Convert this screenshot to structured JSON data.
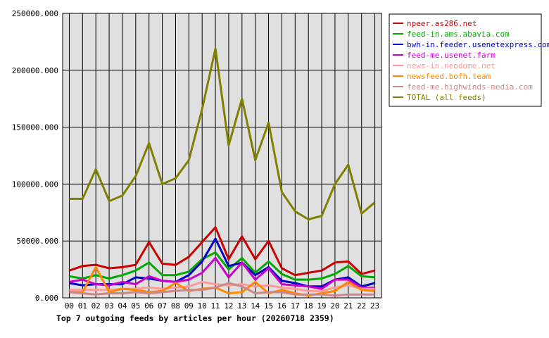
{
  "chart_data": {
    "type": "line",
    "title": "Top 7 outgoing feeds by articles per hour (20260718 2359)",
    "x": [
      "00",
      "01",
      "02",
      "03",
      "04",
      "05",
      "06",
      "07",
      "08",
      "09",
      "10",
      "11",
      "12",
      "13",
      "14",
      "15",
      "16",
      "17",
      "18",
      "19",
      "20",
      "21",
      "22",
      "23"
    ],
    "ylim": [
      0,
      250000
    ],
    "yticks": [
      "0.000",
      "50000.000",
      "100000.000",
      "150000.000",
      "200000.000",
      "250000.000"
    ],
    "ytick_values": [
      0,
      50000,
      100000,
      150000,
      200000,
      250000
    ],
    "grid": true,
    "legend_position": "top-right",
    "series": [
      {
        "name": "npeer.as286.net",
        "color": "#cc0000",
        "values": [
          24000,
          28000,
          29000,
          26000,
          27000,
          29000,
          49000,
          30000,
          29000,
          36000,
          49000,
          62000,
          34000,
          54000,
          34000,
          50000,
          26000,
          20000,
          22000,
          24000,
          31000,
          32000,
          21000,
          24000
        ]
      },
      {
        "name": "feed-in.ams.abavia.com",
        "color": "#00aa00",
        "values": [
          19000,
          17000,
          20000,
          17000,
          20000,
          24000,
          31000,
          20000,
          20000,
          23000,
          34000,
          40000,
          25000,
          35000,
          22000,
          32000,
          21000,
          16000,
          16000,
          17000,
          21000,
          28000,
          19000,
          18000
        ]
      },
      {
        "name": "bwh-in.feeder.usenetexpress.com",
        "color": "#0000cc",
        "values": [
          13000,
          11000,
          12000,
          12000,
          12000,
          18000,
          17000,
          15000,
          14000,
          20000,
          32000,
          52000,
          28000,
          31000,
          20000,
          27000,
          15000,
          13000,
          10000,
          10000,
          16000,
          18000,
          10000,
          13000
        ]
      },
      {
        "name": "feed-me.usenet.farm",
        "color": "#cc00cc",
        "values": [
          14000,
          16000,
          12000,
          11000,
          14000,
          12000,
          19000,
          15000,
          14000,
          16000,
          22000,
          35000,
          18000,
          31000,
          16000,
          26000,
          12000,
          11000,
          10000,
          8000,
          16000,
          16000,
          9000,
          9000
        ]
      },
      {
        "name": "news-in.neodome.net",
        "color": "#ff9999",
        "values": [
          7000,
          7000,
          7000,
          7000,
          8000,
          8000,
          9000,
          8000,
          9000,
          10000,
          14000,
          12000,
          11000,
          12000,
          10000,
          11000,
          9000,
          8000,
          6000,
          6000,
          9000,
          11000,
          8000,
          8000
        ]
      },
      {
        "name": "newsfeed.bofh.team",
        "color": "#ff8800",
        "values": [
          5000,
          5000,
          27000,
          5000,
          8000,
          7000,
          5000,
          6000,
          13000,
          6000,
          8000,
          9000,
          4000,
          5000,
          14000,
          4000,
          7000,
          4000,
          2000,
          4000,
          6000,
          14000,
          7000,
          6000
        ]
      },
      {
        "name": "feed-me.highwinds-media.com",
        "color": "#cc8888",
        "values": [
          5000,
          4000,
          3000,
          4000,
          4000,
          5000,
          4000,
          5000,
          6000,
          7000,
          7000,
          9000,
          13000,
          10000,
          4000,
          5000,
          5000,
          3000,
          3000,
          3000,
          2000,
          3000,
          3000,
          3000
        ]
      },
      {
        "name": "TOTAL (all feeds)",
        "color": "#808000",
        "values": [
          87000,
          87000,
          113000,
          85000,
          90000,
          107000,
          136000,
          100000,
          105000,
          121000,
          166000,
          219000,
          134000,
          175000,
          121000,
          154000,
          93000,
          76000,
          69000,
          72000,
          100000,
          117000,
          74000,
          84000
        ]
      }
    ]
  }
}
